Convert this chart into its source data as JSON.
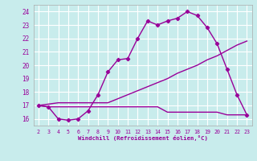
{
  "background_color": "#c8ecec",
  "grid_color": "#ffffff",
  "line_color": "#990099",
  "x_ticks": [
    2,
    3,
    4,
    5,
    6,
    7,
    8,
    9,
    10,
    11,
    12,
    13,
    14,
    15,
    16,
    17,
    18,
    19,
    20,
    21,
    22,
    23
  ],
  "xlabel": "Windchill (Refroidissement éolien,°C)",
  "y_ticks": [
    16,
    17,
    18,
    19,
    20,
    21,
    22,
    23,
    24
  ],
  "ylim": [
    15.5,
    24.5
  ],
  "xlim": [
    1.5,
    23.5
  ],
  "line1_x": [
    2,
    3,
    4,
    5,
    6,
    7,
    8,
    9,
    10,
    11,
    12,
    13,
    14,
    15,
    16,
    17,
    18,
    19,
    20,
    21,
    22,
    23
  ],
  "line1_y": [
    17.0,
    16.9,
    16.0,
    15.9,
    16.0,
    16.6,
    17.8,
    19.5,
    20.4,
    20.5,
    22.0,
    23.3,
    23.0,
    23.3,
    23.5,
    24.0,
    23.7,
    22.8,
    21.6,
    19.7,
    17.8,
    16.3
  ],
  "line2_x": [
    2,
    3,
    4,
    5,
    6,
    7,
    8,
    9,
    10,
    11,
    12,
    13,
    14,
    15,
    16,
    17,
    18,
    19,
    20,
    21,
    22,
    23
  ],
  "line2_y": [
    17.0,
    17.1,
    17.2,
    17.2,
    17.2,
    17.2,
    17.2,
    17.2,
    17.5,
    17.8,
    18.1,
    18.4,
    18.7,
    19.0,
    19.4,
    19.7,
    20.0,
    20.4,
    20.7,
    21.1,
    21.5,
    21.8
  ],
  "line3_x": [
    2,
    3,
    4,
    5,
    6,
    7,
    8,
    9,
    10,
    11,
    12,
    13,
    14,
    15,
    16,
    17,
    18,
    19,
    20,
    21,
    22,
    23
  ],
  "line3_y": [
    17.0,
    16.9,
    16.9,
    16.9,
    16.9,
    16.9,
    16.9,
    16.9,
    16.9,
    16.9,
    16.9,
    16.9,
    16.9,
    16.5,
    16.5,
    16.5,
    16.5,
    16.5,
    16.5,
    16.3,
    16.3,
    16.3
  ]
}
